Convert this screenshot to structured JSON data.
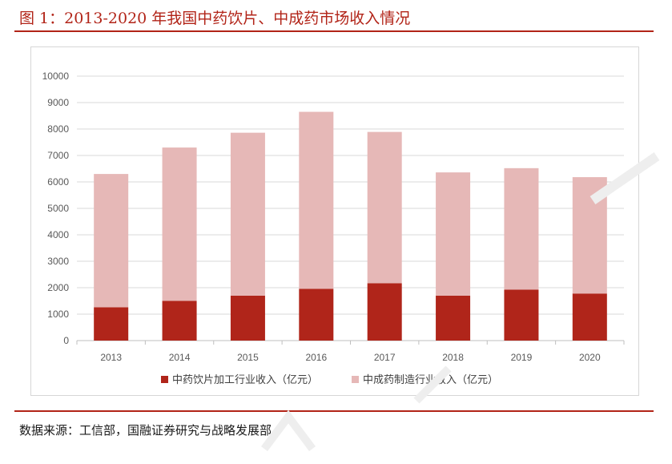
{
  "header": {
    "title": "图 1：2013-2020 年我国中药饮片、中成药市场收入情况"
  },
  "footer": {
    "source": "数据来源：工信部，国融证券研究与战略发展部"
  },
  "colors": {
    "accent": "#b22418",
    "series_dark": "#b0251a",
    "series_light": "#e6b8b7"
  },
  "chart_data": {
    "type": "bar",
    "stacked": true,
    "categories": [
      "2013",
      "2014",
      "2015",
      "2016",
      "2017",
      "2018",
      "2019",
      "2020"
    ],
    "series": [
      {
        "name": "中药饮片加工行业收入（亿元）",
        "color": "#b0251a",
        "values": [
          1260,
          1500,
          1700,
          1960,
          2170,
          1700,
          1930,
          1780
        ]
      },
      {
        "name": "中成药制造行业收入（亿元）",
        "color": "#e6b8b7",
        "values": [
          5040,
          5800,
          6160,
          6690,
          5720,
          4660,
          4590,
          4400
        ]
      }
    ],
    "ylim": [
      0,
      10000
    ],
    "yticks": [
      "0",
      "1000",
      "2000",
      "3000",
      "4000",
      "5000",
      "6000",
      "7000",
      "8000",
      "9000",
      "10000"
    ],
    "grid": true,
    "legend_position": "bottom"
  }
}
